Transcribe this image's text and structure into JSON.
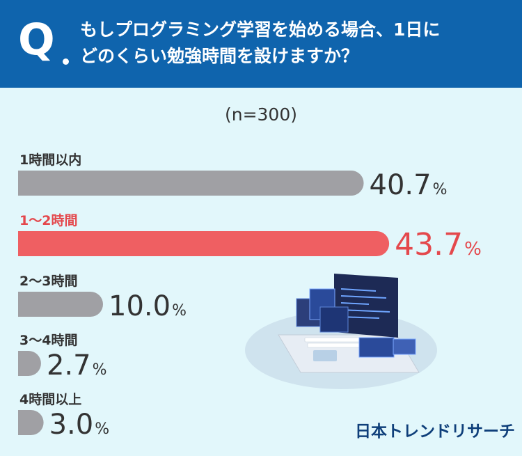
{
  "question": {
    "mark": "Q",
    "line1": "もしプログラミング学習を始める場合、1日に",
    "line2": "どのくらい勉強時間を設けますか？"
  },
  "sample_label": "(n=300)",
  "brand": "日本トレンドリサーチ",
  "colors": {
    "header": "#0f64ad",
    "background": "#e2f7fb",
    "bar_default": "#a0a0a4",
    "bar_highlight": "#ef5f62",
    "label_default": "#333333",
    "label_highlight": "#e4484c"
  },
  "chart_data": {
    "type": "bar",
    "orientation": "horizontal",
    "title": "",
    "xlabel": "",
    "ylabel": "",
    "categories": [
      "1時間以内",
      "1〜2時間",
      "2〜3時間",
      "3〜4時間",
      "4時間以上"
    ],
    "values": [
      40.7,
      43.7,
      10.0,
      2.7,
      3.0
    ],
    "value_labels": [
      "40.7",
      "43.7",
      "10.0",
      "2.7",
      "3.0"
    ],
    "unit": "%",
    "highlight_index": 1,
    "xlim": [
      0,
      100
    ]
  }
}
